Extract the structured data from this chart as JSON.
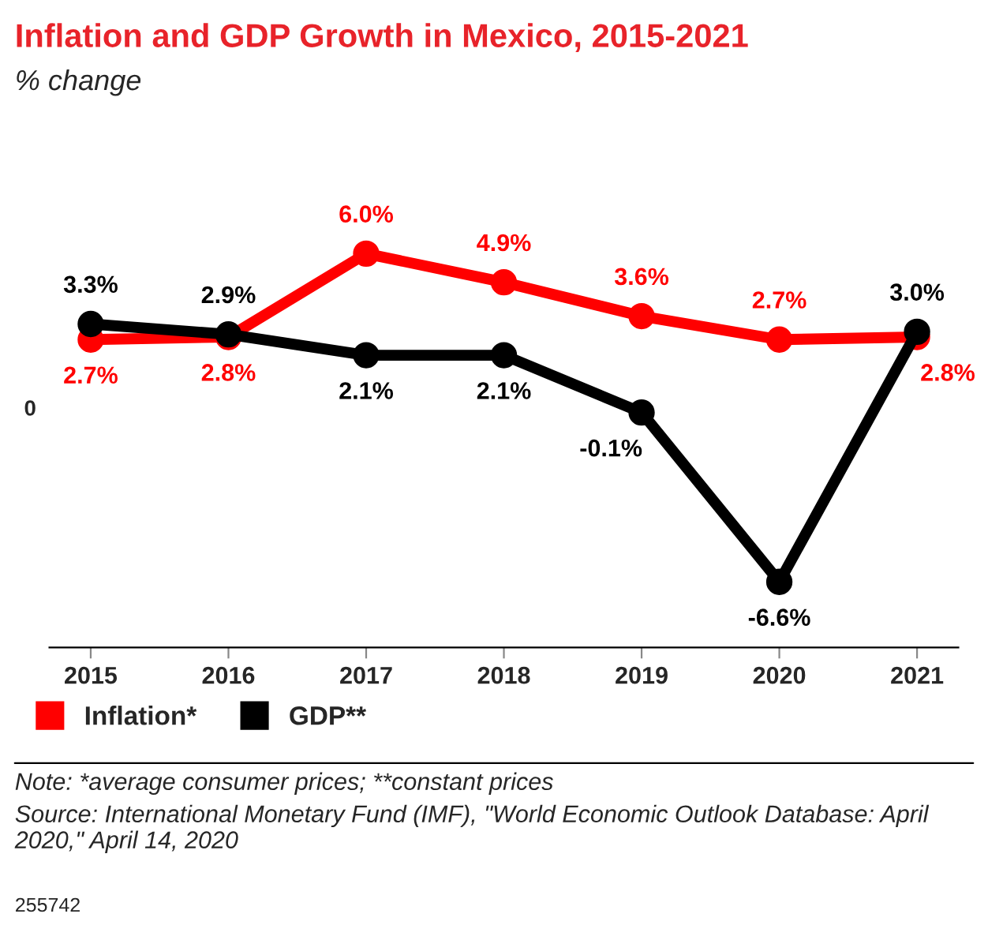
{
  "chart_data": {
    "type": "line",
    "title": "Inflation and GDP Growth in Mexico, 2015-2021",
    "subtitle": "% change",
    "categories": [
      "2015",
      "2016",
      "2017",
      "2018",
      "2019",
      "2020",
      "2021"
    ],
    "series": [
      {
        "name": "Inflation*",
        "color": "#ff0000",
        "values": [
          2.7,
          2.8,
          6.0,
          4.9,
          3.6,
          2.7,
          2.8
        ],
        "value_labels": [
          "2.7%",
          "2.8%",
          "6.0%",
          "4.9%",
          "3.6%",
          "2.7%",
          "2.8%"
        ]
      },
      {
        "name": "GDP**",
        "color": "#000000",
        "values": [
          3.3,
          2.9,
          2.1,
          2.1,
          -0.1,
          -6.6,
          3.0
        ],
        "value_labels": [
          "3.3%",
          "2.9%",
          "2.1%",
          "2.1%",
          "-0.1%",
          "-6.6%",
          "3.0%"
        ]
      }
    ],
    "marker": "circle",
    "line_style": "solid",
    "legend": "bottom left",
    "grid": false,
    "annotations": [
      "0",
      "Note: *average consumer prices; **constant prices",
      "Source: International Monetary Fund (IMF), \"World Economic Outlook Database: April 2020,\" April 14, 2020",
      "255742"
    ]
  }
}
